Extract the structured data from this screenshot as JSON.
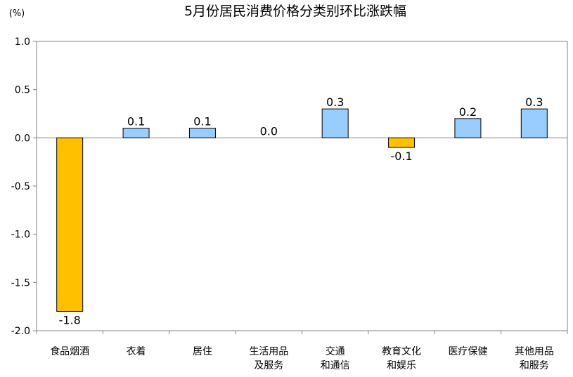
{
  "chart_data": {
    "type": "bar",
    "title": "5月份居民消费价格分类别环比涨跌幅",
    "unit": "(%)",
    "categories": [
      [
        "食品烟酒"
      ],
      [
        "衣着"
      ],
      [
        "居住"
      ],
      [
        "生活用品",
        "及服务"
      ],
      [
        "交通",
        "和通信"
      ],
      [
        "教育文化",
        "和娱乐"
      ],
      [
        "医疗保健"
      ],
      [
        "其他用品",
        "和服务"
      ]
    ],
    "values": [
      -1.8,
      0.1,
      0.1,
      0.0,
      0.3,
      -0.1,
      0.2,
      0.3
    ],
    "value_labels": [
      "-1.8",
      "0.1",
      "0.1",
      "0.0",
      "0.3",
      "-0.1",
      "0.2",
      "0.3"
    ],
    "ylim": [
      -2.0,
      1.0
    ],
    "yticks": [
      1.0,
      0.5,
      0.0,
      -0.5,
      -1.0,
      -1.5,
      -2.0
    ],
    "ytick_labels": [
      "1.0",
      "0.5",
      "0.0",
      "-0.5",
      "-1.0",
      "-1.5",
      "-2.0"
    ],
    "grid": false,
    "colors": {
      "negative": "#FFC000",
      "positive": "#99CCFF",
      "bar_stroke": "#000000",
      "axis": "#808080"
    }
  }
}
